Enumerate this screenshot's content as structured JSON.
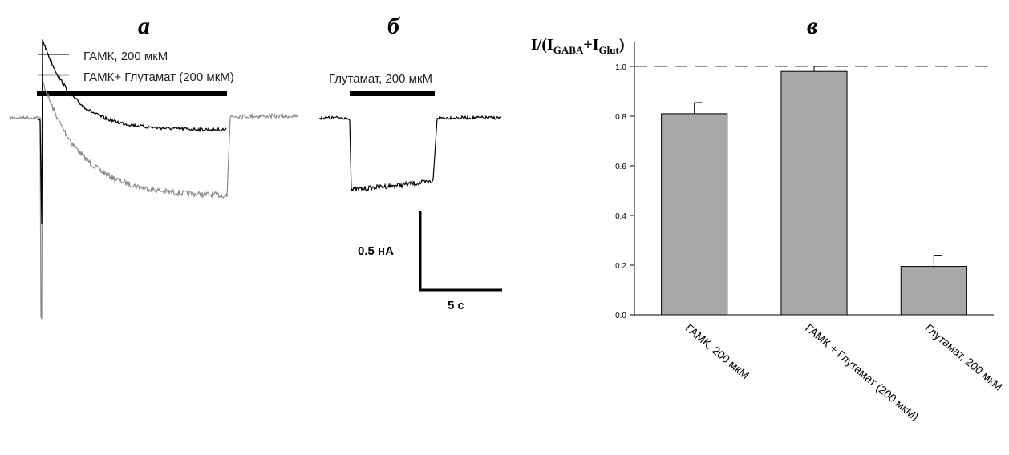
{
  "panels": {
    "a": {
      "label": "а",
      "legend": [
        {
          "text": "ГАМК, 200 мкМ",
          "color": "#777777"
        },
        {
          "text": "ГАМК+ Глутамат (200 мкМ)",
          "color": "#bbbbbb"
        }
      ]
    },
    "b": {
      "label": "б",
      "bar_label": "Глутамат, 200 мкМ"
    },
    "c": {
      "label": "в"
    }
  },
  "scale_bar": {
    "current_label": "0.5 нА",
    "time_label": "5 с"
  },
  "chart_data": [
    {
      "type": "line",
      "panel": "а",
      "series": [
        {
          "name": "ГАМК, 200 мкМ",
          "color": "#000000"
        },
        {
          "name": "ГАМК+ Глутамат (200 мкМ)",
          "color": "#888888"
        }
      ]
    },
    {
      "type": "line",
      "panel": "б",
      "series": [
        {
          "name": "Глутамат, 200 мкМ",
          "color": "#000000"
        }
      ]
    },
    {
      "type": "bar",
      "panel": "в",
      "ylabel": {
        "base": "I/(I",
        "sub1": "GABA",
        "plus": "+I",
        "sub2": "Glut",
        "close": ")"
      },
      "ylim": [
        0,
        1.0
      ],
      "yticks": [
        "0.0",
        "0.2",
        "0.4",
        "0.6",
        "0.8",
        "1.0"
      ],
      "reference_line": 1.0,
      "categories": [
        "ГАМК, 200 мкМ",
        "ГАМК + Глутамат (200 мкМ)",
        "Глутамат, 200 мкМ"
      ],
      "values": [
        0.81,
        0.98,
        0.195
      ],
      "errors": [
        0.045,
        0.02,
        0.045
      ],
      "bar_color": "#a8a8a8"
    }
  ]
}
